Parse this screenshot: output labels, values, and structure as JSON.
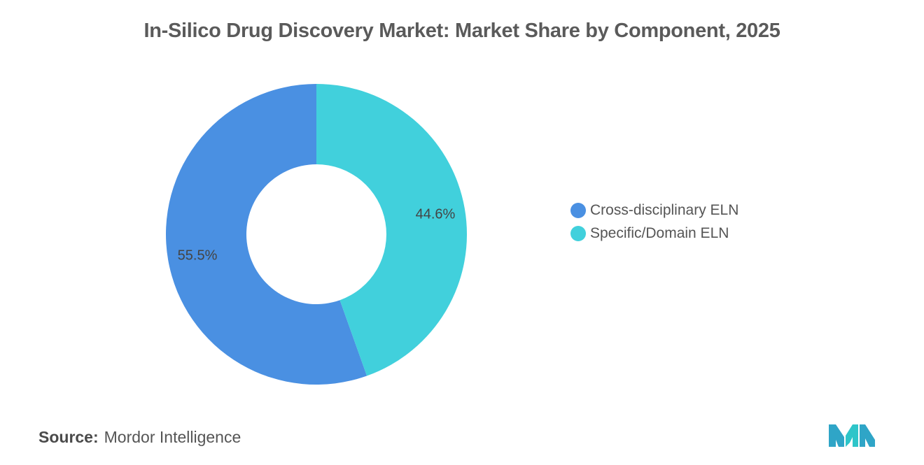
{
  "chart_data": {
    "type": "pie",
    "title": "In-Silico Drug Discovery Market: Market Share by Component, 2025",
    "categories": [
      "Cross-disciplinary ELN",
      "Specific/Domain ELN"
    ],
    "values": [
      55.5,
      44.6
    ],
    "value_labels": [
      "55.5%",
      "44.6%"
    ],
    "colors": [
      "#4a90e2",
      "#41d0dc"
    ],
    "donut": true,
    "legend_position": "right"
  },
  "legend": {
    "items": [
      {
        "label": "Cross-disciplinary ELN",
        "color": "#4a90e2"
      },
      {
        "label": "Specific/Domain ELN",
        "color": "#41d0dc"
      }
    ]
  },
  "footer": {
    "source_key": "Source:",
    "source_value": "Mordor Intelligence"
  },
  "logo": {
    "icon": "mordor-intelligence-logo-icon",
    "colors": [
      "#2fa5c7",
      "#2ec5c9"
    ]
  }
}
